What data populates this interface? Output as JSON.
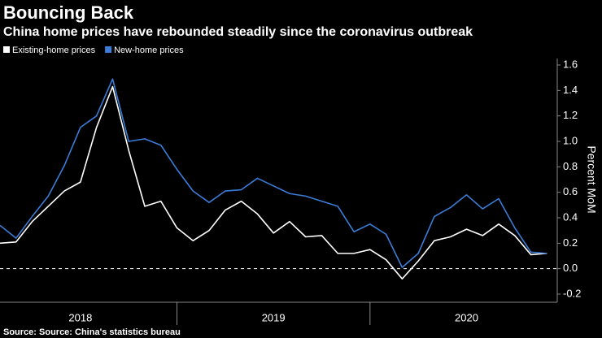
{
  "chart_data": {
    "type": "line",
    "title": "Bouncing Back",
    "subtitle": "China home prices have rebounded steadily since the coronavirus outbreak",
    "y_label": "Percent MoM",
    "source": "Source: Source: China's statistics bureau",
    "x": [
      2018.0833,
      2018.1667,
      2018.25,
      2018.3333,
      2018.4167,
      2018.5,
      2018.5833,
      2018.6667,
      2018.75,
      2018.8333,
      2018.9167,
      2019,
      2019.0833,
      2019.1667,
      2019.25,
      2019.3333,
      2019.4167,
      2019.5,
      2019.5833,
      2019.6667,
      2019.75,
      2019.8333,
      2019.9167,
      2020,
      2020.0833,
      2020.1667,
      2020.25,
      2020.3333,
      2020.4167,
      2020.5,
      2020.5833,
      2020.6667,
      2020.75,
      2020.8333,
      2020.9167
    ],
    "series": [
      {
        "name": "Existing-home prices",
        "color": "#ffffff",
        "values": [
          0.2,
          0.21,
          0.37,
          0.49,
          0.61,
          0.68,
          1.11,
          1.43,
          0.93,
          0.49,
          0.53,
          0.32,
          0.22,
          0.3,
          0.46,
          0.53,
          0.43,
          0.28,
          0.37,
          0.25,
          0.26,
          0.12,
          0.12,
          0.15,
          0.07,
          -0.08,
          0.06,
          0.22,
          0.25,
          0.31,
          0.26,
          0.35,
          0.26,
          0.11,
          0.12
        ]
      },
      {
        "name": "New-home prices",
        "color": "#3b7dd8",
        "values": [
          0.34,
          0.24,
          0.41,
          0.57,
          0.81,
          1.11,
          1.2,
          1.49,
          1.0,
          1.02,
          0.97,
          0.78,
          0.61,
          0.52,
          0.61,
          0.62,
          0.71,
          0.65,
          0.59,
          0.57,
          0.53,
          0.49,
          0.29,
          0.35,
          0.27,
          0.01,
          0.12,
          0.41,
          0.48,
          0.58,
          0.47,
          0.55,
          0.32,
          0.13,
          0.12
        ]
      }
    ],
    "xlim": [
      2018.0833,
      2020.97
    ],
    "xticks": [
      {
        "value": 2018.5,
        "label": "2018"
      },
      {
        "value": 2019.5,
        "label": "2019"
      },
      {
        "value": 2020.5,
        "label": "2020"
      }
    ],
    "ylim": [
      -0.2,
      1.6
    ],
    "yticks": [
      -0.2,
      {
        "value": 0,
        "label": "0.0"
      },
      0.2,
      0.4,
      0.6,
      0.8,
      {
        "value": 1,
        "label": "1.0"
      },
      1.2,
      1.4,
      1.6
    ],
    "reference_line": 0,
    "legend": "top-left"
  }
}
